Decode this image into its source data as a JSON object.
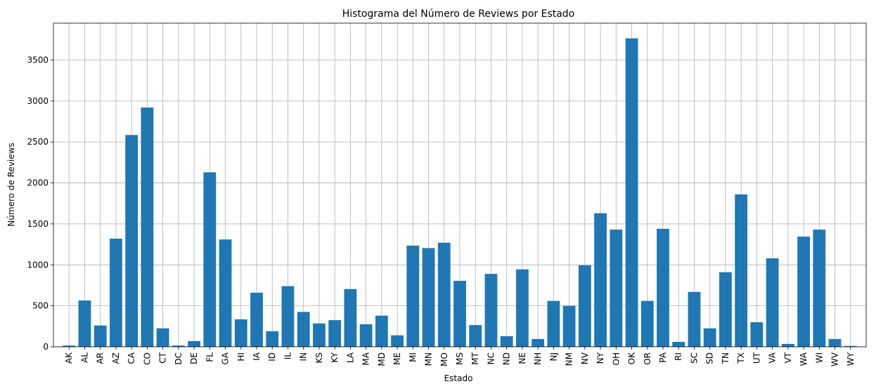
{
  "chart_data": {
    "type": "bar",
    "title": "Histograma del Número de Reviews por Estado",
    "xlabel": "Estado",
    "ylabel": "Número de Reviews",
    "ylim": [
      0,
      3950
    ],
    "yticks": [
      0,
      500,
      1000,
      1500,
      2000,
      2500,
      3000,
      3500
    ],
    "grid": true,
    "bar_color": "#1f77b4",
    "categories": [
      "AK",
      "AL",
      "AR",
      "AZ",
      "CA",
      "CO",
      "CT",
      "DC",
      "DE",
      "FL",
      "GA",
      "HI",
      "IA",
      "ID",
      "IL",
      "IN",
      "KS",
      "KY",
      "LA",
      "MA",
      "MD",
      "ME",
      "MI",
      "MN",
      "MO",
      "MS",
      "MT",
      "NC",
      "ND",
      "NE",
      "NH",
      "NJ",
      "NM",
      "NV",
      "NY",
      "OH",
      "OK",
      "OR",
      "PA",
      "RI",
      "SC",
      "SD",
      "TN",
      "TX",
      "UT",
      "VA",
      "VT",
      "WA",
      "WI",
      "WV",
      "WY"
    ],
    "values": [
      15,
      565,
      260,
      1320,
      2585,
      2920,
      225,
      15,
      70,
      2130,
      1310,
      335,
      660,
      190,
      740,
      425,
      285,
      325,
      705,
      275,
      380,
      140,
      1235,
      1205,
      1270,
      805,
      265,
      890,
      130,
      945,
      95,
      560,
      500,
      995,
      1630,
      1430,
      3765,
      560,
      1440,
      60,
      670,
      225,
      910,
      1860,
      300,
      1080,
      35,
      1345,
      1430,
      95,
      10
    ]
  }
}
